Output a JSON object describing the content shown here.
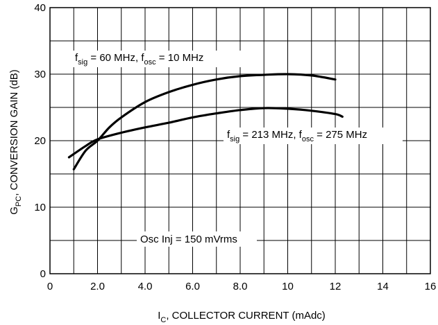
{
  "chart_data": {
    "type": "line",
    "xlabel_main": "I",
    "xlabel_sub": "C",
    "xlabel_rest": ", COLLECTOR CURRENT (mAdc)",
    "ylabel_main": "G",
    "ylabel_sub": "PC",
    "ylabel_rest": ", CONVERSION GAIN (dB)",
    "xlim": [
      0,
      16
    ],
    "ylim": [
      0,
      40
    ],
    "x_ticks": [
      0,
      2,
      4,
      6,
      8,
      10,
      12,
      14,
      16
    ],
    "x_tick_labels": [
      "0",
      "2.0",
      "4.0",
      "6.0",
      "8.0",
      "10",
      "12",
      "14",
      "16"
    ],
    "y_ticks": [
      0,
      10,
      20,
      30,
      40
    ],
    "y_tick_labels": [
      "0",
      "10",
      "20",
      "30",
      "40"
    ],
    "x_grid_step": 1,
    "y_grid_step": 5,
    "grid": true,
    "series": [
      {
        "values": [
          [
            1.0,
            15.7
          ],
          [
            1.5,
            18.5
          ],
          [
            2.0,
            20.0
          ],
          [
            2.5,
            22.0
          ],
          [
            3.0,
            23.5
          ],
          [
            4.0,
            25.8
          ],
          [
            5.0,
            27.3
          ],
          [
            6.0,
            28.4
          ],
          [
            7.0,
            29.2
          ],
          [
            8.0,
            29.7
          ],
          [
            9.0,
            29.9
          ],
          [
            10.0,
            30.0
          ],
          [
            11.0,
            29.8
          ],
          [
            12.0,
            29.2
          ]
        ]
      },
      {
        "values": [
          [
            0.8,
            17.5
          ],
          [
            1.5,
            19.2
          ],
          [
            2.0,
            20.2
          ],
          [
            3.0,
            21.2
          ],
          [
            4.0,
            22.0
          ],
          [
            5.0,
            22.7
          ],
          [
            6.0,
            23.5
          ],
          [
            7.0,
            24.1
          ],
          [
            8.0,
            24.6
          ],
          [
            9.0,
            24.9
          ],
          [
            10.0,
            24.8
          ],
          [
            11.0,
            24.5
          ],
          [
            12.0,
            24.0
          ],
          [
            12.3,
            23.6
          ]
        ]
      }
    ],
    "annotations": {
      "a1": {
        "pre": "f",
        "sub1": "sig",
        "mid": " = 60 MHz, f",
        "sub2": "osc",
        "post": " = 10 MHz"
      },
      "a2": {
        "pre": "f",
        "sub1": "sig",
        "mid": " = 213 MHz, f",
        "sub2": "osc",
        "post": " = 275 MHz"
      },
      "a3": {
        "text": "Osc Inj = 150 mVrms"
      }
    },
    "line_color": "#000000",
    "grid_color": "#000000",
    "background_color": "#ffffff"
  }
}
